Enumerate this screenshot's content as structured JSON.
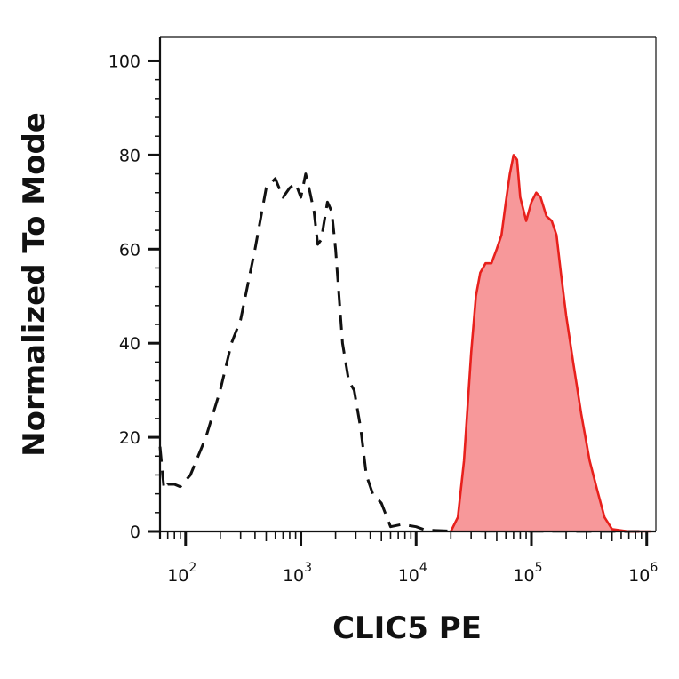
{
  "chart_data": {
    "type": "area",
    "xlabel": "CLIC5 PE",
    "ylabel": "Normalized To Mode",
    "x_scale": "log",
    "xlim": [
      60,
      1200000
    ],
    "ylim": [
      0,
      105
    ],
    "grid": false,
    "y_ticks": [
      "0",
      "20",
      "40",
      "60",
      "80",
      "100"
    ],
    "y_tick_values": [
      0,
      20,
      40,
      60,
      80,
      100
    ],
    "x_ticks": [
      {
        "base": "10",
        "exp": "2",
        "value": 100
      },
      {
        "base": "10",
        "exp": "3",
        "value": 1000
      },
      {
        "base": "10",
        "exp": "4",
        "value": 10000
      },
      {
        "base": "10",
        "exp": "5",
        "value": 100000
      },
      {
        "base": "10",
        "exp": "6",
        "value": 1000000
      }
    ],
    "series": [
      {
        "style": "dashed",
        "color": "#111111",
        "points": [
          [
            60,
            18
          ],
          [
            65,
            9
          ],
          [
            70,
            10
          ],
          [
            80,
            10
          ],
          [
            90,
            9.5
          ],
          [
            110,
            12
          ],
          [
            150,
            20
          ],
          [
            200,
            30
          ],
          [
            250,
            40
          ],
          [
            300,
            45
          ],
          [
            400,
            60
          ],
          [
            500,
            73
          ],
          [
            600,
            75
          ],
          [
            700,
            71
          ],
          [
            800,
            73
          ],
          [
            900,
            74
          ],
          [
            1000,
            71
          ],
          [
            1100,
            76
          ],
          [
            1200,
            72
          ],
          [
            1300,
            68
          ],
          [
            1400,
            61
          ],
          [
            1500,
            62
          ],
          [
            1700,
            70
          ],
          [
            1850,
            68
          ],
          [
            2000,
            60
          ],
          [
            2300,
            40
          ],
          [
            2600,
            32
          ],
          [
            2900,
            30
          ],
          [
            3300,
            22
          ],
          [
            3700,
            12
          ],
          [
            4200,
            8
          ],
          [
            5000,
            6
          ],
          [
            6000,
            1
          ],
          [
            7500,
            1.5
          ],
          [
            10000,
            1
          ],
          [
            12000,
            0.3
          ],
          [
            20000,
            0.1
          ],
          [
            1000000,
            0
          ]
        ]
      },
      {
        "style": "filled",
        "color": "#e8201c",
        "fill": "#f7989a",
        "points": [
          [
            20000,
            0
          ],
          [
            23000,
            3
          ],
          [
            26000,
            15
          ],
          [
            30000,
            38
          ],
          [
            33000,
            50
          ],
          [
            36000,
            55
          ],
          [
            40000,
            57
          ],
          [
            45000,
            57
          ],
          [
            50000,
            60
          ],
          [
            55000,
            63
          ],
          [
            60000,
            70
          ],
          [
            65000,
            76
          ],
          [
            70000,
            80
          ],
          [
            75000,
            79
          ],
          [
            80000,
            71
          ],
          [
            90000,
            66
          ],
          [
            100000,
            70
          ],
          [
            110000,
            72
          ],
          [
            120000,
            71
          ],
          [
            135000,
            67
          ],
          [
            150000,
            66
          ],
          [
            165000,
            63
          ],
          [
            180000,
            55
          ],
          [
            200000,
            46
          ],
          [
            230000,
            36
          ],
          [
            270000,
            25
          ],
          [
            320000,
            15
          ],
          [
            370000,
            9
          ],
          [
            430000,
            3
          ],
          [
            500000,
            0.5
          ],
          [
            700000,
            0
          ],
          [
            1100000,
            0
          ]
        ]
      }
    ]
  }
}
